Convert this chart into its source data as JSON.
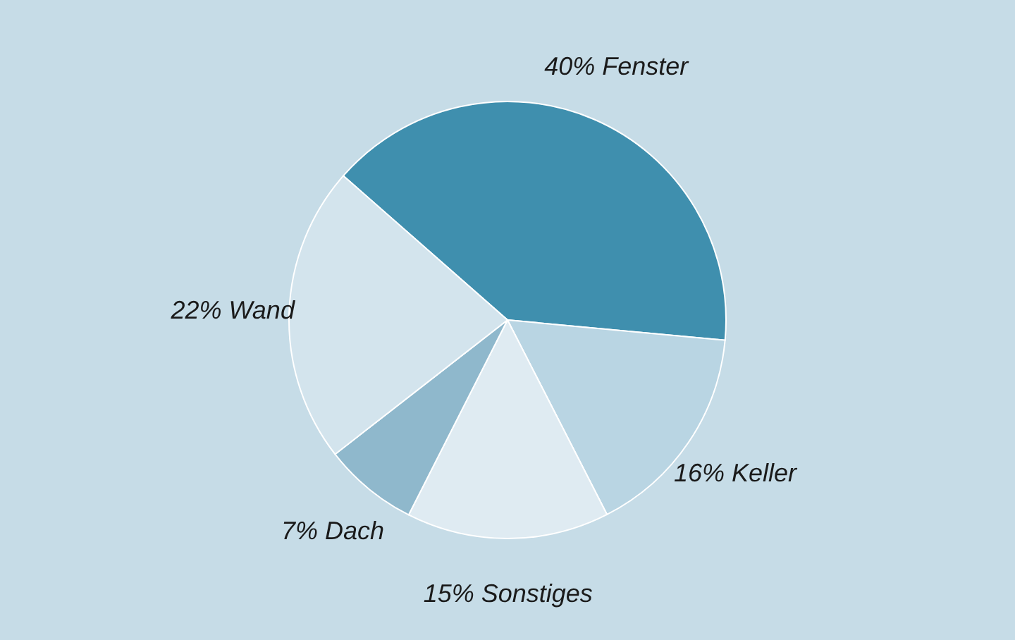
{
  "chart_data": {
    "type": "pie",
    "categories": [
      "Fenster",
      "Keller",
      "Sonstiges",
      "Dach",
      "Wand"
    ],
    "values": [
      40,
      16,
      15,
      7,
      22
    ],
    "value_labels": [
      "40%",
      "16%",
      "15%",
      "7%",
      "22%"
    ],
    "colors": [
      "#3f8fae",
      "#b9d5e3",
      "#dfebf2",
      "#8fb8cc",
      "#d3e4ed"
    ]
  }
}
